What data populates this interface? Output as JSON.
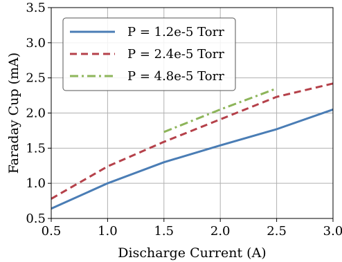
{
  "chart_data": {
    "type": "line",
    "xlabel": "Discharge Current (A)",
    "ylabel": "Faraday Cup (mA)",
    "xlim": [
      0.5,
      3.0
    ],
    "ylim": [
      0.5,
      3.5
    ],
    "xticks": [
      0.5,
      1.0,
      1.5,
      2.0,
      2.5,
      3.0
    ],
    "yticks": [
      0.5,
      1.0,
      1.5,
      2.0,
      2.5,
      3.0,
      3.5
    ],
    "xtick_labels": [
      "0.5",
      "1.0",
      "1.5",
      "2.0",
      "2.5",
      "3.0"
    ],
    "ytick_labels": [
      "0.5",
      "1.0",
      "1.5",
      "2.0",
      "2.5",
      "3.0",
      "3.5"
    ],
    "grid": true,
    "legend_position": "top-left",
    "series": [
      {
        "name": "P = 1.2e-5 Torr",
        "color": "#4a7db5",
        "dash": "solid",
        "x": [
          0.5,
          1.0,
          1.5,
          2.0,
          2.5,
          3.0
        ],
        "y": [
          0.64,
          1.0,
          1.3,
          1.54,
          1.77,
          2.05
        ]
      },
      {
        "name": "P = 2.4e-5 Torr",
        "color": "#b5414a",
        "dash": "dashed",
        "x": [
          0.5,
          1.0,
          1.5,
          2.0,
          2.5,
          3.0
        ],
        "y": [
          0.78,
          1.24,
          1.59,
          1.91,
          2.23,
          2.42
        ]
      },
      {
        "name": "P = 4.8e-5 Torr",
        "color": "#8db55a",
        "dash": "dashdot",
        "x": [
          1.5,
          2.0,
          2.5
        ],
        "y": [
          1.73,
          2.05,
          2.35
        ]
      }
    ]
  }
}
